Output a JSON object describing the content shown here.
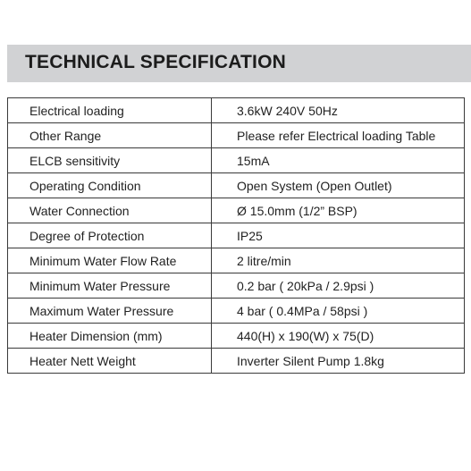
{
  "header": {
    "title": "TECHNICAL SPECIFICATION"
  },
  "colors": {
    "header_bar": "#d1d2d4",
    "text": "#222222",
    "border": "#3a3a3a"
  },
  "spec_table": {
    "rows": [
      {
        "label": "Electrical loading",
        "value": "3.6kW 240V 50Hz"
      },
      {
        "label": "Other Range",
        "value": "Please refer Electrical loading Table"
      },
      {
        "label": "ELCB sensitivity",
        "value": "15mA"
      },
      {
        "label": "Operating Condition",
        "value": "Open System (Open Outlet)"
      },
      {
        "label": "Water Connection",
        "value": "Ø 15.0mm (1/2” BSP)"
      },
      {
        "label": "Degree of Protection",
        "value": "IP25"
      },
      {
        "label": "Minimum Water Flow Rate",
        "value": "2 litre/min"
      },
      {
        "label": "Minimum Water Pressure",
        "value": "0.2 bar ( 20kPa / 2.9psi )"
      },
      {
        "label": "Maximum Water Pressure",
        "value": "4 bar ( 0.4MPa / 58psi )"
      },
      {
        "label": "Heater Dimension (mm)",
        "value": "440(H) x 190(W) x 75(D)"
      },
      {
        "label": "Heater Nett Weight",
        "value": "Inverter Silent Pump 1.8kg"
      }
    ]
  }
}
